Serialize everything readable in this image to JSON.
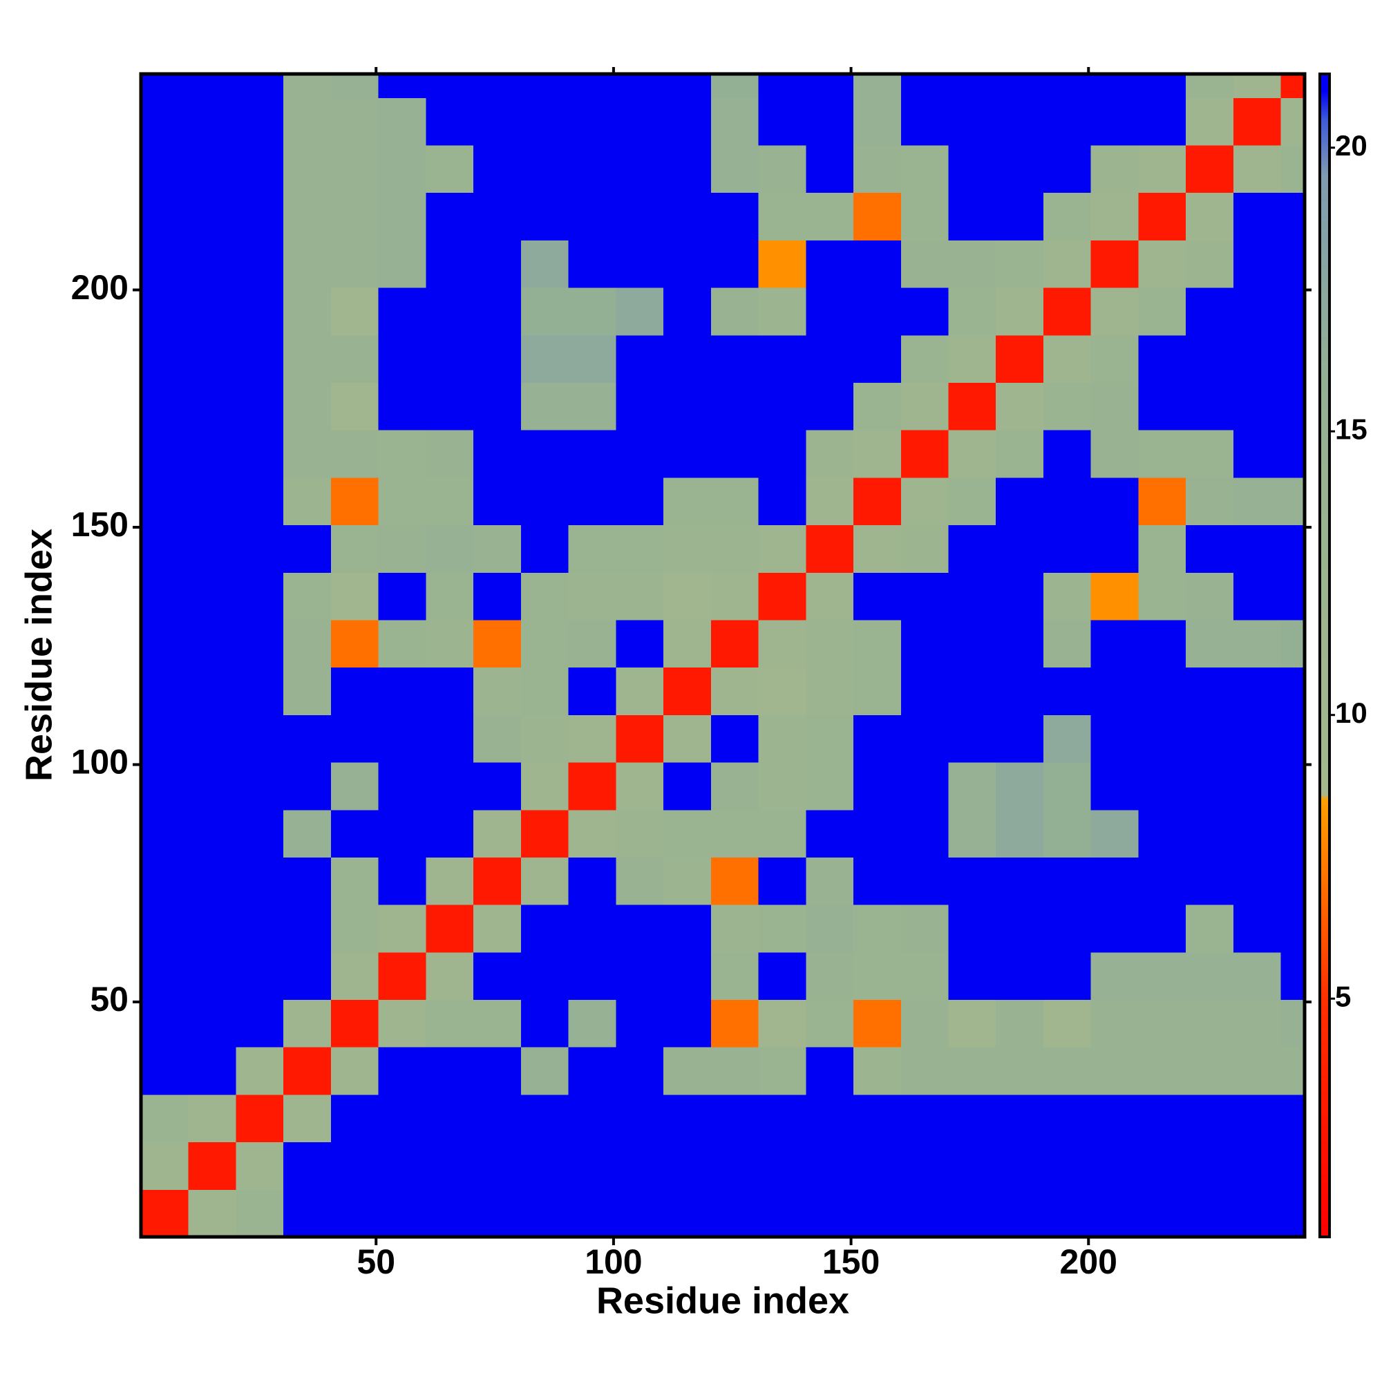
{
  "chart_data": {
    "type": "heatmap",
    "xlabel": "Residue index",
    "ylabel": "Residue index",
    "xlim": [
      0.5,
      245.5
    ],
    "ylim": [
      0.5,
      245.5
    ],
    "xticks": [
      50,
      100,
      150,
      200
    ],
    "yticks": [
      50,
      100,
      150,
      200
    ],
    "bins": [
      0.5,
      10.5,
      20.5,
      30.5,
      40.5,
      50.5,
      60.5,
      70.5,
      80.5,
      90.5,
      100.5,
      110.5,
      120.5,
      130.5,
      140.5,
      150.5,
      160.5,
      170.5,
      180.5,
      190.5,
      200.5,
      210.5,
      220.5,
      230.5,
      240.5,
      245.5
    ],
    "z": [
      [
        3,
        11,
        13,
        21,
        21,
        21,
        21,
        21,
        21,
        21,
        21,
        21,
        21,
        21,
        21,
        21,
        21,
        21,
        21,
        21,
        21,
        21,
        21,
        21,
        21
      ],
      [
        11,
        3,
        11,
        21,
        21,
        21,
        21,
        21,
        21,
        21,
        21,
        21,
        21,
        21,
        21,
        21,
        21,
        21,
        21,
        21,
        21,
        21,
        21,
        21,
        21
      ],
      [
        13,
        11,
        3,
        11,
        21,
        21,
        21,
        21,
        21,
        21,
        21,
        21,
        21,
        21,
        21,
        21,
        21,
        21,
        21,
        21,
        21,
        21,
        21,
        21,
        21
      ],
      [
        21,
        21,
        11,
        3,
        11,
        21,
        21,
        21,
        15,
        21,
        21,
        14,
        14,
        13,
        21,
        12,
        14,
        14,
        14,
        14,
        14,
        14,
        14,
        14,
        14
      ],
      [
        21,
        21,
        21,
        11,
        3,
        11,
        13,
        13,
        21,
        15,
        21,
        21,
        7,
        10,
        13,
        7,
        14,
        10,
        14,
        10,
        14,
        14,
        14,
        14,
        15
      ],
      [
        21,
        21,
        21,
        21,
        11,
        3,
        11,
        21,
        21,
        21,
        21,
        21,
        13,
        21,
        14,
        13,
        13,
        21,
        21,
        21,
        15,
        15,
        15,
        15,
        21
      ],
      [
        21,
        21,
        21,
        21,
        13,
        11,
        3,
        11,
        21,
        21,
        21,
        21,
        12,
        13,
        15,
        13,
        14,
        21,
        21,
        21,
        21,
        21,
        13,
        21,
        21
      ],
      [
        21,
        21,
        21,
        21,
        13,
        21,
        11,
        3,
        11,
        21,
        14,
        12,
        7,
        21,
        14,
        21,
        21,
        21,
        21,
        21,
        21,
        21,
        21,
        21,
        21
      ],
      [
        21,
        21,
        21,
        15,
        21,
        21,
        21,
        11,
        3,
        11,
        12,
        13,
        13,
        13,
        21,
        21,
        21,
        15,
        17,
        16,
        17,
        21,
        21,
        21,
        21
      ],
      [
        21,
        21,
        21,
        21,
        15,
        21,
        21,
        21,
        11,
        3,
        11,
        21,
        14,
        12,
        13,
        21,
        21,
        15,
        17,
        16,
        21,
        21,
        21,
        21,
        21
      ],
      [
        21,
        21,
        21,
        21,
        21,
        21,
        21,
        14,
        12,
        11,
        3,
        11,
        21,
        12,
        13,
        21,
        21,
        21,
        21,
        17,
        21,
        21,
        21,
        21,
        21
      ],
      [
        21,
        21,
        21,
        14,
        21,
        21,
        21,
        12,
        13,
        21,
        11,
        3,
        11,
        10,
        12,
        13,
        21,
        21,
        21,
        21,
        21,
        21,
        21,
        21,
        21
      ],
      [
        21,
        21,
        21,
        14,
        7,
        13,
        12,
        7,
        13,
        14,
        21,
        11,
        3,
        11,
        12,
        13,
        21,
        21,
        21,
        14,
        21,
        21,
        15,
        15,
        16
      ],
      [
        21,
        21,
        21,
        13,
        10,
        21,
        13,
        21,
        13,
        12,
        12,
        10,
        11,
        3,
        11,
        21,
        21,
        21,
        21,
        12,
        8,
        13,
        14,
        21,
        21
      ],
      [
        21,
        21,
        21,
        21,
        13,
        14,
        15,
        14,
        21,
        13,
        13,
        12,
        12,
        11,
        3,
        11,
        12,
        21,
        21,
        21,
        21,
        13,
        21,
        21,
        21
      ],
      [
        21,
        21,
        21,
        12,
        7,
        13,
        13,
        21,
        21,
        21,
        21,
        13,
        13,
        21,
        11,
        3,
        11,
        13,
        21,
        21,
        21,
        7,
        14,
        15,
        15
      ],
      [
        21,
        21,
        21,
        14,
        14,
        13,
        14,
        21,
        21,
        21,
        21,
        21,
        21,
        21,
        12,
        11,
        3,
        11,
        13,
        21,
        14,
        13,
        13,
        21,
        21
      ],
      [
        21,
        21,
        21,
        14,
        10,
        21,
        21,
        21,
        15,
        15,
        21,
        21,
        21,
        21,
        21,
        13,
        11,
        3,
        11,
        13,
        14,
        21,
        21,
        21,
        21
      ],
      [
        21,
        21,
        21,
        14,
        14,
        21,
        21,
        21,
        17,
        17,
        21,
        21,
        21,
        21,
        21,
        21,
        13,
        11,
        3,
        11,
        13,
        21,
        21,
        21,
        21
      ],
      [
        21,
        21,
        21,
        14,
        10,
        21,
        21,
        21,
        16,
        16,
        17,
        21,
        14,
        12,
        21,
        21,
        21,
        13,
        11,
        3,
        11,
        13,
        21,
        21,
        21
      ],
      [
        21,
        21,
        21,
        14,
        14,
        15,
        21,
        21,
        17,
        21,
        21,
        21,
        21,
        8,
        21,
        21,
        14,
        14,
        13,
        11,
        3,
        11,
        12,
        21,
        21
      ],
      [
        21,
        21,
        21,
        14,
        14,
        15,
        21,
        21,
        21,
        21,
        21,
        21,
        21,
        13,
        13,
        7,
        13,
        21,
        21,
        13,
        11,
        3,
        11,
        21,
        21
      ],
      [
        21,
        21,
        21,
        14,
        14,
        15,
        13,
        21,
        21,
        21,
        21,
        21,
        15,
        14,
        21,
        14,
        13,
        21,
        21,
        21,
        12,
        11,
        3,
        11,
        13
      ],
      [
        21,
        21,
        21,
        14,
        14,
        15,
        21,
        21,
        21,
        21,
        21,
        21,
        15,
        21,
        21,
        15,
        21,
        21,
        21,
        21,
        21,
        21,
        11,
        3,
        11
      ],
      [
        21,
        21,
        21,
        14,
        15,
        21,
        21,
        21,
        21,
        21,
        21,
        21,
        16,
        21,
        21,
        15,
        21,
        21,
        21,
        21,
        21,
        21,
        13,
        11,
        3
      ]
    ],
    "colorbar": {
      "lim": [
        0.8,
        21.3
      ],
      "ticks": [
        5,
        10,
        15,
        20
      ],
      "colorscale": [
        [
          0.8,
          "#ff0000"
        ],
        [
          5,
          "#ff3000"
        ],
        [
          8.5,
          "#ffa000"
        ],
        [
          8.6,
          "#a4b88c"
        ],
        [
          16,
          "#94b094"
        ],
        [
          19.5,
          "#7f9cb0"
        ],
        [
          20.5,
          "#3d5ad8"
        ],
        [
          21,
          "#0000f5"
        ]
      ]
    }
  }
}
